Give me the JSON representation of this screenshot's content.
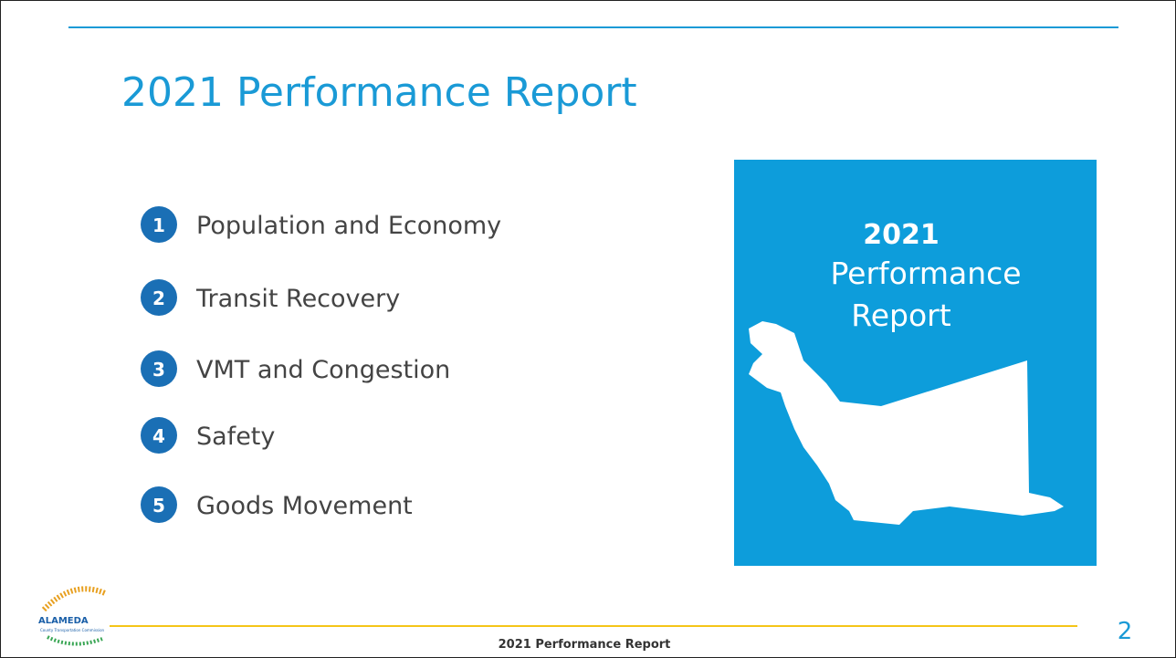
{
  "slide": {
    "title": "2021 Performance Report",
    "items": [
      {
        "number": "1",
        "label": "Population and Economy"
      },
      {
        "number": "2",
        "label": "Transit Recovery"
      },
      {
        "number": "3",
        "label": "VMT and Congestion"
      },
      {
        "number": "4",
        "label": "Safety"
      },
      {
        "number": "5",
        "label": "Goods Movement"
      }
    ],
    "cover": {
      "year": "2021",
      "line1": "Performance",
      "line2": "Report"
    },
    "logo": {
      "name": "ALAMEDA",
      "subtitle": "County Transportation Commission"
    },
    "footer": "2021 Performance Report",
    "page_number": "2"
  }
}
